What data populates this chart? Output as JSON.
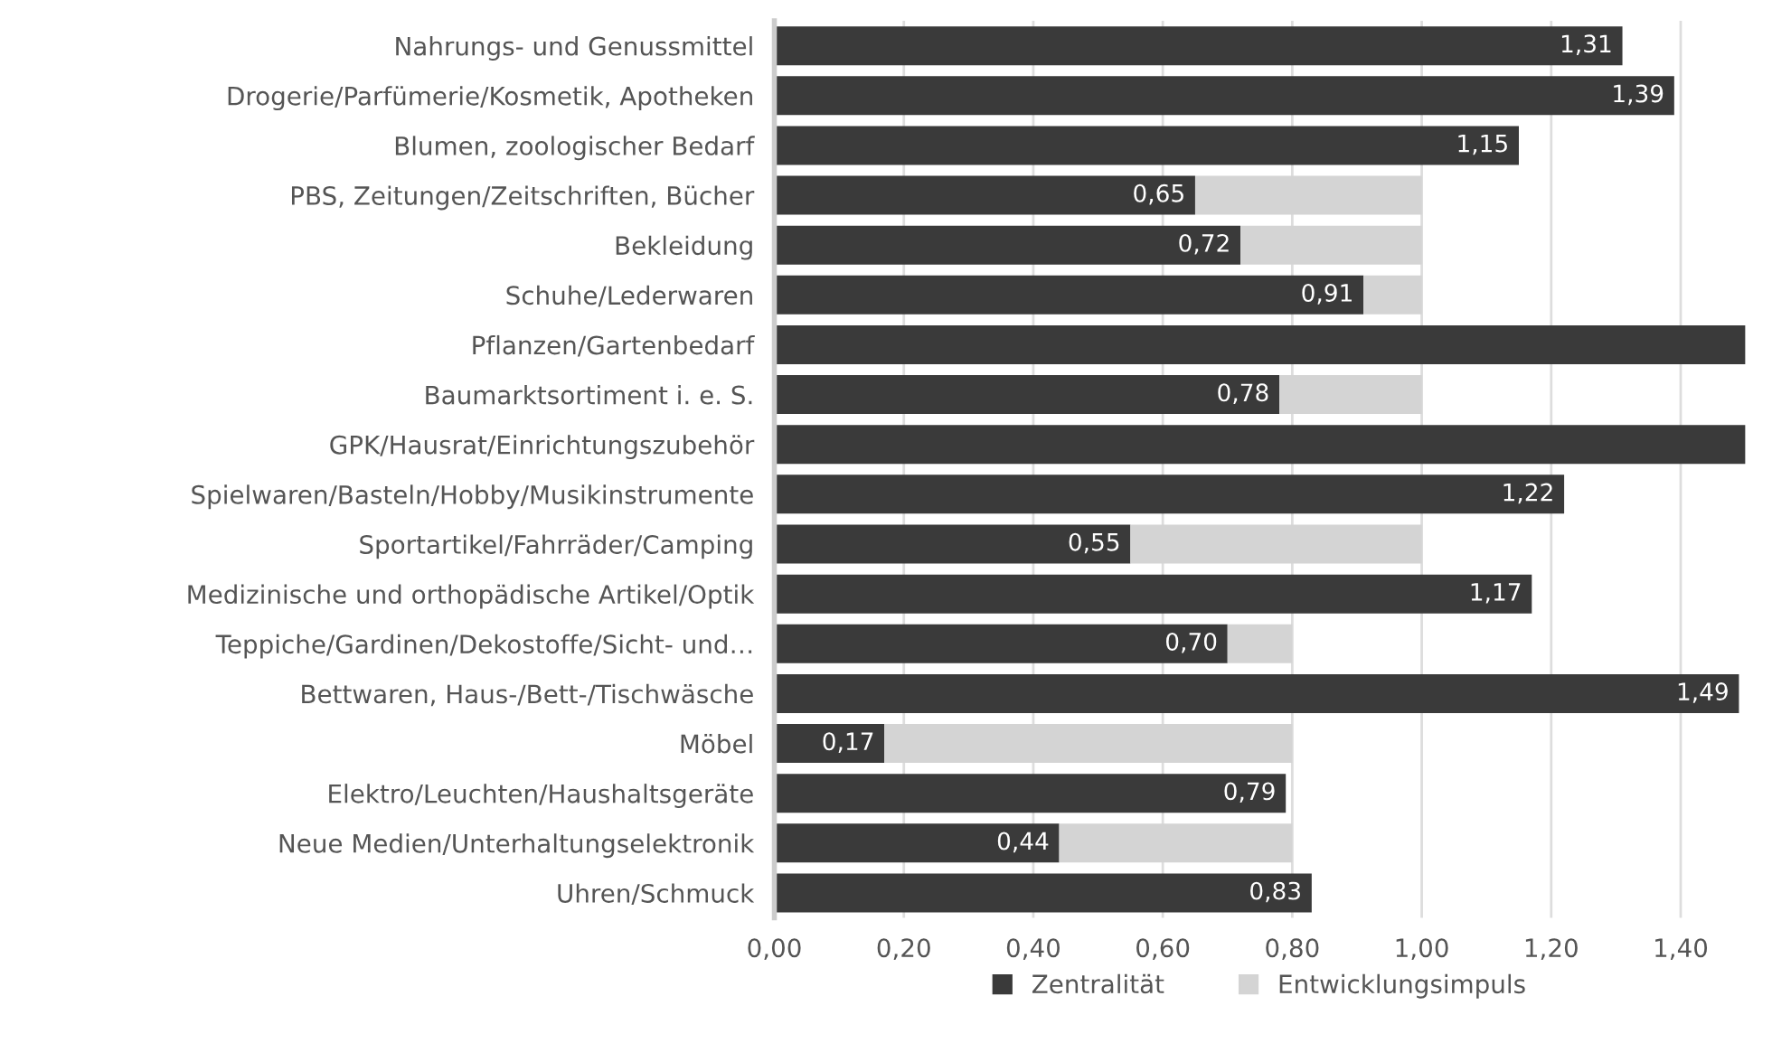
{
  "chart_data": {
    "type": "bar",
    "orientation": "horizontal",
    "stacked": true,
    "categories": [
      "Nahrungs- und Genussmittel",
      "Drogerie/Parfümerie/Kosmetik, Apotheken",
      "Blumen, zoologischer Bedarf",
      "PBS, Zeitungen/Zeitschriften, Bücher",
      "Bekleidung",
      "Schuhe/Lederwaren",
      "Pflanzen/Gartenbedarf",
      "Baumarktsortiment i. e. S.",
      "GPK/Hausrat/Einrichtungszubehör",
      "Spielwaren/Basteln/Hobby/Musikinstrumente",
      "Sportartikel/Fahrräder/Camping",
      "Medizinische und orthopädische Artikel/Optik",
      "Teppiche/Gardinen/Dekostoffe/Sicht- und…",
      "Bettwaren, Haus-/Bett-/Tischwäsche",
      "Möbel",
      "Elektro/Leuchten/Haushaltsgeräte",
      "Neue Medien/Unterhaltungselektronik",
      "Uhren/Schmuck"
    ],
    "series": [
      {
        "name": "Zentralität",
        "color": "#3a3a3a",
        "values": [
          1.31,
          1.39,
          1.15,
          0.65,
          0.72,
          0.91,
          1.5,
          0.78,
          1.5,
          1.22,
          0.55,
          1.17,
          0.7,
          1.49,
          0.17,
          0.79,
          0.44,
          0.83
        ],
        "value_labels": [
          "1,31",
          "1,39",
          "1,15",
          "0,65",
          "0,72",
          "0,91",
          null,
          "0,78",
          null,
          "1,22",
          "0,55",
          "1,17",
          "0,70",
          "1,49",
          "0,17",
          "0,79",
          "0,44",
          "0,83"
        ]
      },
      {
        "name": "Entwicklungsimpuls",
        "color": "#d4d4d4",
        "values": [
          null,
          null,
          null,
          0.35,
          0.28,
          0.09,
          null,
          0.22,
          null,
          null,
          0.45,
          null,
          0.1,
          null,
          0.63,
          null,
          0.36,
          null
        ]
      }
    ],
    "xlim": [
      0,
      1.5
    ],
    "xticks": [
      {
        "value": 0,
        "label": "0,00"
      },
      {
        "value": 0.2,
        "label": "0,20"
      },
      {
        "value": 0.4,
        "label": "0,40"
      },
      {
        "value": 0.6,
        "label": "0,60"
      },
      {
        "value": 0.8,
        "label": "0,80"
      },
      {
        "value": 1.0,
        "label": "1,00"
      },
      {
        "value": 1.2,
        "label": "1,20"
      },
      {
        "value": 1.4,
        "label": "1,40"
      }
    ],
    "grid": "x",
    "legend": "bottom"
  }
}
